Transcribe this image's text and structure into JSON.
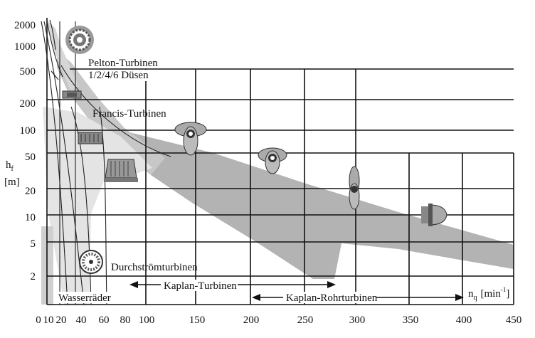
{
  "y_ticks": [
    "2000",
    "1000",
    "500",
    "200",
    "100",
    "50",
    "20",
    "10",
    "5",
    "2"
  ],
  "x_ticks": [
    "0",
    "10",
    "20",
    "40",
    "60",
    "80",
    "100",
    "150",
    "200",
    "250",
    "300",
    "350",
    "400",
    "450"
  ],
  "y_axis_label_h": "h",
  "y_axis_label_sub": "f",
  "y_axis_unit": "[m]",
  "x_axis_label_n": "n",
  "x_axis_label_sub": "q",
  "x_axis_unit_open": "[min",
  "x_axis_unit_sup": "-1",
  "x_axis_unit_close": "]",
  "labels": {
    "pelton": "Pelton-Turbinen",
    "pelton_nozzles": "1/2/4/6 Düsen",
    "francis": "Francis-Turbinen",
    "durchstroem": "Durchströmturbinen",
    "kaplan": "Kaplan-Turbinen",
    "kaplan_rohr": "Kaplan-Rohrturbinen",
    "wasserraeder": "Wasserräder"
  },
  "colors": {
    "light_region": "#e4e4e4",
    "mid_region": "#cfcfcf",
    "dark_region": "#b3b3b3",
    "lines": "#111111"
  },
  "icons": [
    "pelton-wheel-icon",
    "francis-runner-icon",
    "kaplan-runner-icon",
    "bulb-turbine-icon",
    "crossflow-runner-icon"
  ]
}
